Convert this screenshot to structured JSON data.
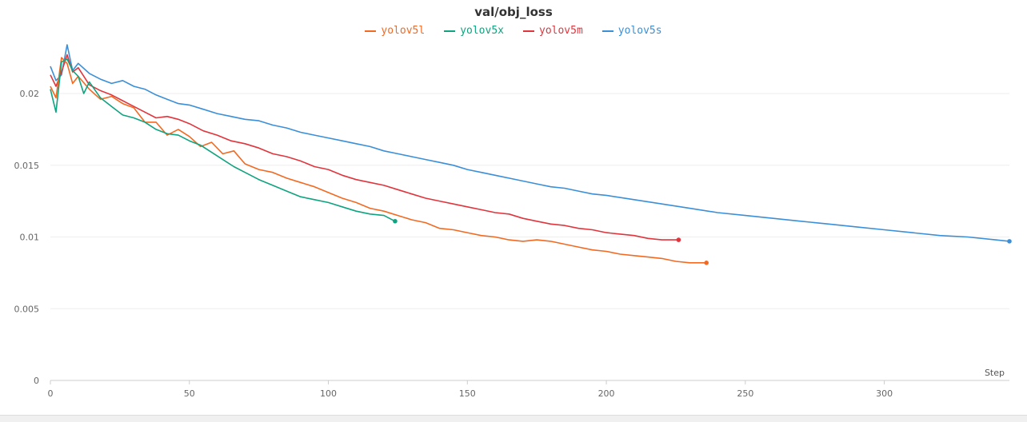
{
  "chart_data": {
    "type": "line",
    "title": "val/obj_loss",
    "xlabel": "Step",
    "ylabel": "",
    "xlim": [
      0,
      345
    ],
    "ylim": [
      0,
      0.02
    ],
    "x_ticks": [
      "0",
      "50",
      "100",
      "150",
      "200",
      "250",
      "300"
    ],
    "y_ticks": [
      "0",
      "0.005",
      "0.01",
      "0.015",
      "0.02"
    ],
    "grid": true,
    "legend_position": "top",
    "series": [
      {
        "name": "yolov5l",
        "color": "#f26a22",
        "x": [
          0,
          2,
          4,
          6,
          8,
          10,
          14,
          18,
          22,
          26,
          30,
          34,
          38,
          42,
          46,
          50,
          54,
          58,
          62,
          66,
          70,
          75,
          80,
          85,
          90,
          95,
          100,
          105,
          110,
          115,
          120,
          125,
          130,
          135,
          140,
          145,
          150,
          155,
          160,
          165,
          170,
          175,
          180,
          185,
          190,
          195,
          200,
          205,
          210,
          215,
          220,
          225,
          230,
          236
        ],
        "y": [
          0.0205,
          0.0197,
          0.0225,
          0.0221,
          0.0207,
          0.0212,
          0.0203,
          0.0196,
          0.0198,
          0.0193,
          0.019,
          0.018,
          0.018,
          0.0171,
          0.0175,
          0.017,
          0.0163,
          0.0166,
          0.0158,
          0.016,
          0.0151,
          0.0147,
          0.0145,
          0.0141,
          0.0138,
          0.0135,
          0.0131,
          0.0127,
          0.0124,
          0.012,
          0.0118,
          0.0115,
          0.0112,
          0.011,
          0.0106,
          0.0105,
          0.0103,
          0.0101,
          0.01,
          0.0098,
          0.0097,
          0.0098,
          0.0097,
          0.0095,
          0.0093,
          0.0091,
          0.009,
          0.0088,
          0.0087,
          0.0086,
          0.0085,
          0.0083,
          0.0082,
          0.0082
        ]
      },
      {
        "name": "yolov5x",
        "color": "#10a37f",
        "x": [
          0,
          2,
          4,
          6,
          8,
          10,
          12,
          14,
          18,
          22,
          26,
          30,
          34,
          38,
          42,
          46,
          50,
          54,
          58,
          62,
          66,
          70,
          75,
          80,
          85,
          90,
          95,
          100,
          105,
          110,
          115,
          120,
          124
        ],
        "y": [
          0.0203,
          0.0187,
          0.0222,
          0.0224,
          0.0216,
          0.0212,
          0.02,
          0.0208,
          0.0197,
          0.0191,
          0.0185,
          0.0183,
          0.018,
          0.0175,
          0.0172,
          0.0171,
          0.0167,
          0.0164,
          0.0159,
          0.0154,
          0.0149,
          0.0145,
          0.014,
          0.0136,
          0.0132,
          0.0128,
          0.0126,
          0.0124,
          0.0121,
          0.0118,
          0.0116,
          0.0115,
          0.0111
        ]
      },
      {
        "name": "yolov5m",
        "color": "#e0353c",
        "x": [
          0,
          2,
          4,
          6,
          8,
          10,
          14,
          18,
          22,
          26,
          30,
          34,
          38,
          42,
          46,
          50,
          55,
          60,
          65,
          70,
          75,
          80,
          85,
          90,
          95,
          100,
          105,
          110,
          115,
          120,
          125,
          130,
          135,
          140,
          145,
          150,
          155,
          160,
          165,
          170,
          175,
          180,
          185,
          190,
          195,
          200,
          205,
          210,
          215,
          220,
          226
        ],
        "y": [
          0.0213,
          0.0205,
          0.0215,
          0.0227,
          0.0215,
          0.0218,
          0.0206,
          0.0202,
          0.0199,
          0.0195,
          0.0191,
          0.0187,
          0.0183,
          0.0184,
          0.0182,
          0.0179,
          0.0174,
          0.0171,
          0.0167,
          0.0165,
          0.0162,
          0.0158,
          0.0156,
          0.0153,
          0.0149,
          0.0147,
          0.0143,
          0.014,
          0.0138,
          0.0136,
          0.0133,
          0.013,
          0.0127,
          0.0125,
          0.0123,
          0.0121,
          0.0119,
          0.0117,
          0.0116,
          0.0113,
          0.0111,
          0.0109,
          0.0108,
          0.0106,
          0.0105,
          0.0103,
          0.0102,
          0.0101,
          0.0099,
          0.0098,
          0.0098
        ]
      },
      {
        "name": "yolov5s",
        "color": "#3a8fd8",
        "x": [
          0,
          2,
          4,
          6,
          8,
          10,
          14,
          18,
          22,
          26,
          30,
          34,
          38,
          42,
          46,
          50,
          55,
          60,
          65,
          70,
          75,
          80,
          85,
          90,
          95,
          100,
          105,
          110,
          115,
          120,
          125,
          130,
          135,
          140,
          145,
          150,
          155,
          160,
          165,
          170,
          175,
          180,
          185,
          190,
          195,
          200,
          210,
          220,
          230,
          240,
          250,
          260,
          270,
          280,
          290,
          300,
          310,
          320,
          330,
          340,
          345
        ],
        "y": [
          0.0219,
          0.0209,
          0.0213,
          0.0234,
          0.0216,
          0.0221,
          0.0214,
          0.021,
          0.0207,
          0.0209,
          0.0205,
          0.0203,
          0.0199,
          0.0196,
          0.0193,
          0.0192,
          0.0189,
          0.0186,
          0.0184,
          0.0182,
          0.0181,
          0.0178,
          0.0176,
          0.0173,
          0.0171,
          0.0169,
          0.0167,
          0.0165,
          0.0163,
          0.016,
          0.0158,
          0.0156,
          0.0154,
          0.0152,
          0.015,
          0.0147,
          0.0145,
          0.0143,
          0.0141,
          0.0139,
          0.0137,
          0.0135,
          0.0134,
          0.0132,
          0.013,
          0.0129,
          0.0126,
          0.0123,
          0.012,
          0.0117,
          0.0115,
          0.0113,
          0.0111,
          0.0109,
          0.0107,
          0.0105,
          0.0103,
          0.0101,
          0.01,
          0.0098,
          0.0097
        ]
      }
    ]
  }
}
